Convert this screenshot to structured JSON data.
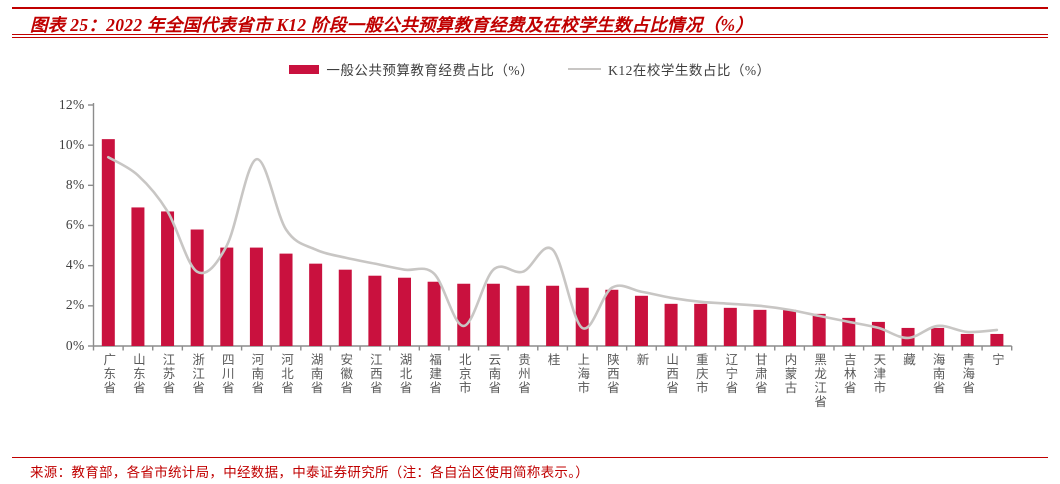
{
  "figure": {
    "title": "图表 25：2022 年全国代表省市 K12 阶段一般公共预算教育经费及在校学生数占比情况（%）",
    "source_note": "来源：教育部，各省市统计局，中经数据，中泰证券研究所（注：各自治区使用简称表示。）"
  },
  "legend": {
    "bar_label": "一般公共预算教育经费占比（%）",
    "line_label": "K12在校学生数占比（%）"
  },
  "colors": {
    "bar": "#c9113e",
    "line": "#c8c6c4",
    "axis": "#8c8c8c",
    "accent_red": "#c00000",
    "tick_text": "#404040",
    "category_text": "#595959"
  },
  "chart_data": {
    "type": "bar",
    "subtype": "bar+line combo",
    "title": "2022 年全国代表省市 K12 阶段一般公共预算教育经费及在校学生数占比情况（%）",
    "categories": [
      "广东省",
      "山东省",
      "江苏省",
      "浙江省",
      "四川省",
      "河南省",
      "河北省",
      "湖南省",
      "安徽省",
      "江西省",
      "湖北省",
      "福建省",
      "北京市",
      "云南省",
      "贵州省",
      "桂",
      "上海市",
      "陕西省",
      "新",
      "山西省",
      "重庆市",
      "辽宁省",
      "甘肃省",
      "内蒙古",
      "黑龙江省",
      "吉林省",
      "天津市",
      "藏",
      "海南省",
      "青海省",
      "宁"
    ],
    "series": [
      {
        "name": "一般公共预算教育经费占比（%）",
        "type": "bar",
        "values": [
          10.3,
          6.9,
          6.7,
          5.8,
          4.9,
          4.9,
          4.6,
          4.1,
          3.8,
          3.5,
          3.4,
          3.2,
          3.1,
          3.1,
          3.0,
          3.0,
          2.9,
          2.8,
          2.5,
          2.1,
          2.1,
          1.9,
          1.8,
          1.8,
          1.6,
          1.4,
          1.2,
          0.9,
          0.9,
          0.6,
          0.6
        ]
      },
      {
        "name": "K12在校学生数占比（%）",
        "type": "line",
        "values": [
          9.4,
          8.5,
          6.7,
          3.7,
          5.0,
          9.3,
          5.8,
          4.8,
          4.4,
          4.1,
          3.8,
          3.6,
          1.0,
          3.8,
          3.7,
          4.8,
          0.9,
          2.9,
          2.7,
          2.4,
          2.2,
          2.1,
          2.0,
          1.8,
          1.5,
          1.2,
          0.9,
          0.4,
          1.0,
          0.7,
          0.8
        ]
      }
    ],
    "xlabel": "",
    "ylabel": "",
    "ylim": [
      0,
      12
    ],
    "ytick_step": 2,
    "yticks": [
      "0%",
      "2%",
      "4%",
      "6%",
      "8%",
      "10%",
      "12%"
    ],
    "grid": false,
    "legend_position": "top-center",
    "note": "各自治区使用简称表示（桂、新、藏、宁）"
  }
}
